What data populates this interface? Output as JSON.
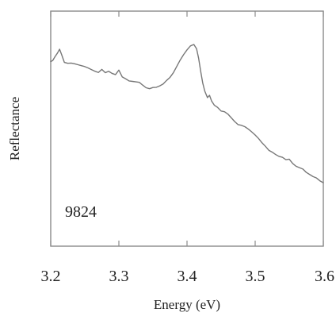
{
  "chart_data": {
    "type": "line",
    "title": "",
    "xlabel": "Energy (eV)",
    "ylabel": "Reflectance",
    "xlim": [
      3.2,
      3.6
    ],
    "ylim": [
      0,
      1
    ],
    "x_ticks": [
      3.2,
      3.3,
      3.4,
      3.5,
      3.6
    ],
    "x_tick_labels": [
      "3.2",
      "3.3",
      "3.4",
      "3.5",
      "3.6"
    ],
    "y_tick_labels_shown": false,
    "grid": false,
    "legend": "none",
    "line_color": "#777777",
    "annotation": "9824",
    "series": [
      {
        "x": [
          3.2,
          3.203,
          3.206,
          3.21,
          3.213,
          3.216,
          3.22,
          3.225,
          3.23,
          3.235,
          3.24,
          3.245,
          3.25,
          3.255,
          3.26,
          3.265,
          3.27,
          3.275,
          3.28,
          3.285,
          3.29,
          3.295,
          3.3,
          3.305,
          3.31,
          3.315,
          3.32,
          3.325,
          3.33,
          3.335,
          3.34,
          3.345,
          3.35,
          3.355,
          3.36,
          3.365,
          3.37,
          3.375,
          3.38,
          3.385,
          3.39,
          3.395,
          3.4,
          3.405,
          3.41,
          3.414,
          3.417,
          3.42,
          3.423,
          3.426,
          3.43,
          3.433,
          3.436,
          3.44,
          3.445,
          3.45,
          3.455,
          3.46,
          3.465,
          3.47,
          3.475,
          3.48,
          3.485,
          3.49,
          3.495,
          3.5,
          3.505,
          3.51,
          3.515,
          3.52,
          3.525,
          3.53,
          3.535,
          3.54,
          3.545,
          3.55,
          3.555,
          3.56,
          3.565,
          3.57,
          3.575,
          3.58,
          3.585,
          3.59,
          3.595,
          3.6
        ],
        "y": [
          0.785,
          0.79,
          0.805,
          0.822,
          0.838,
          0.815,
          0.782,
          0.778,
          0.779,
          0.776,
          0.772,
          0.768,
          0.764,
          0.758,
          0.751,
          0.744,
          0.739,
          0.752,
          0.738,
          0.744,
          0.735,
          0.73,
          0.749,
          0.72,
          0.712,
          0.703,
          0.701,
          0.699,
          0.697,
          0.685,
          0.674,
          0.67,
          0.675,
          0.676,
          0.682,
          0.69,
          0.705,
          0.718,
          0.738,
          0.765,
          0.792,
          0.815,
          0.835,
          0.852,
          0.858,
          0.84,
          0.8,
          0.745,
          0.695,
          0.66,
          0.632,
          0.642,
          0.618,
          0.6,
          0.59,
          0.575,
          0.572,
          0.562,
          0.546,
          0.53,
          0.517,
          0.514,
          0.508,
          0.498,
          0.486,
          0.473,
          0.458,
          0.44,
          0.425,
          0.408,
          0.4,
          0.39,
          0.382,
          0.378,
          0.368,
          0.37,
          0.352,
          0.34,
          0.334,
          0.328,
          0.314,
          0.305,
          0.296,
          0.29,
          0.278,
          0.27
        ]
      }
    ]
  }
}
